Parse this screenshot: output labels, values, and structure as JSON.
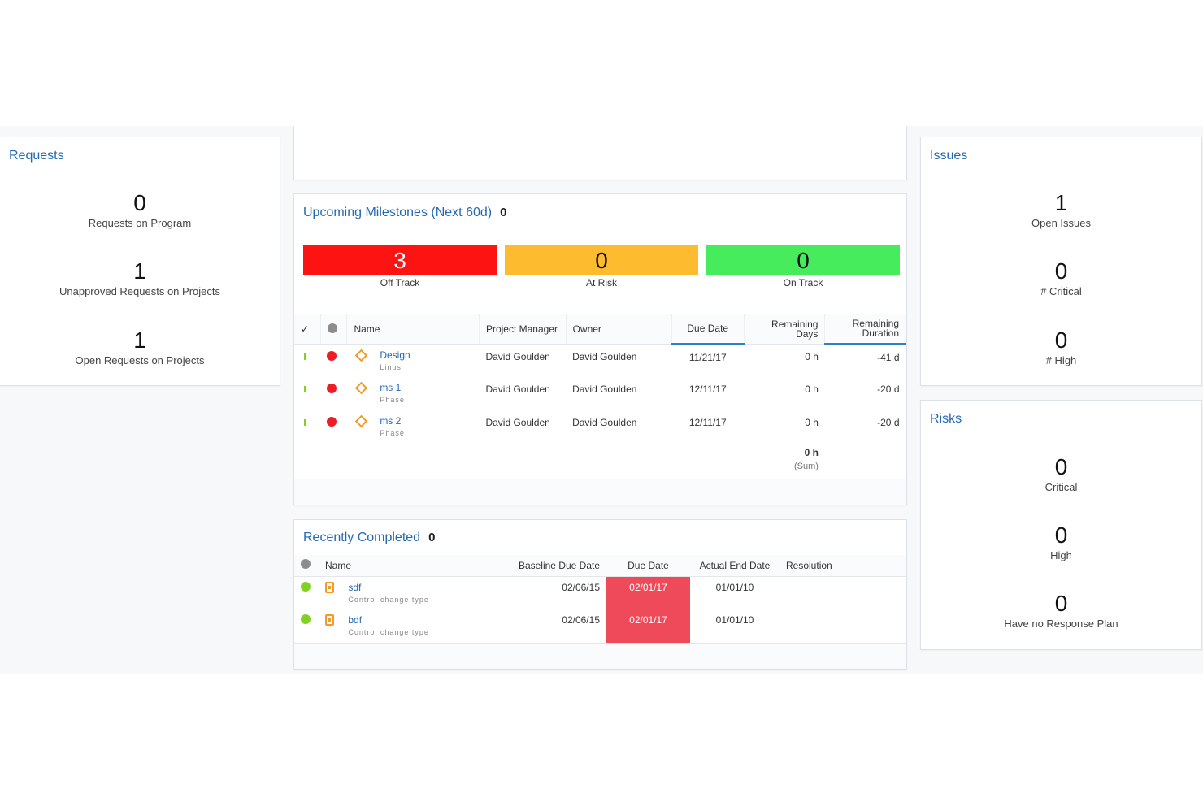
{
  "requests": {
    "title": "Requests",
    "stats": [
      {
        "value": "0",
        "label": "Requests on Program"
      },
      {
        "value": "1",
        "label": "Unapproved Requests on Projects"
      },
      {
        "value": "1",
        "label": "Open Requests on Projects"
      }
    ]
  },
  "issues": {
    "title": "Issues",
    "stats": [
      {
        "value": "1",
        "label": "Open Issues"
      },
      {
        "value": "0",
        "label": "# Critical"
      },
      {
        "value": "0",
        "label": "# High"
      }
    ]
  },
  "risks": {
    "title": "Risks",
    "stats": [
      {
        "value": "0",
        "label": "Critical"
      },
      {
        "value": "0",
        "label": "High"
      },
      {
        "value": "0",
        "label": "Have no Response Plan"
      }
    ]
  },
  "milestones": {
    "title": "Upcoming Milestones (Next 60d)",
    "count": "0",
    "status": [
      {
        "value": "3",
        "label": "Off Track",
        "color": "#fe1313"
      },
      {
        "value": "0",
        "label": "At Risk",
        "color": "#fdbb2f"
      },
      {
        "value": "0",
        "label": "On Track",
        "color": "#47ec5d"
      }
    ],
    "columns": {
      "check": "✓",
      "name": "Name",
      "pm": "Project Manager",
      "owner": "Owner",
      "due": "Due Date",
      "rem_days": "Remaining Days",
      "rem_duration": "Remaining Duration"
    },
    "rows": [
      {
        "name": "Design",
        "sub": "Linus",
        "pm": "David Goulden",
        "owner": "David Goulden",
        "due": "11/21/17",
        "rem_days": "0 h",
        "rem_duration": "-41 d"
      },
      {
        "name": "ms 1",
        "sub": "Phase",
        "pm": "David Goulden",
        "owner": "David Goulden",
        "due": "12/11/17",
        "rem_days": "0 h",
        "rem_duration": "-20 d"
      },
      {
        "name": "ms 2",
        "sub": "Phase",
        "pm": "David Goulden",
        "owner": "David Goulden",
        "due": "12/11/17",
        "rem_days": "0 h",
        "rem_duration": "-20 d"
      }
    ],
    "total": {
      "value": "0 h",
      "label": "(Sum)"
    }
  },
  "recent": {
    "title": "Recently Completed",
    "count": "0",
    "columns": {
      "name": "Name",
      "baseline": "Baseline Due Date",
      "due": "Due Date",
      "actual": "Actual End Date",
      "resolution": "Resolution"
    },
    "rows": [
      {
        "name": "sdf",
        "sub": "Control change type",
        "baseline": "02/06/15",
        "due": "02/01/17",
        "actual": "01/01/10"
      },
      {
        "name": "bdf",
        "sub": "Control change type",
        "baseline": "02/06/15",
        "due": "02/01/17",
        "actual": "01/01/10"
      }
    ]
  }
}
